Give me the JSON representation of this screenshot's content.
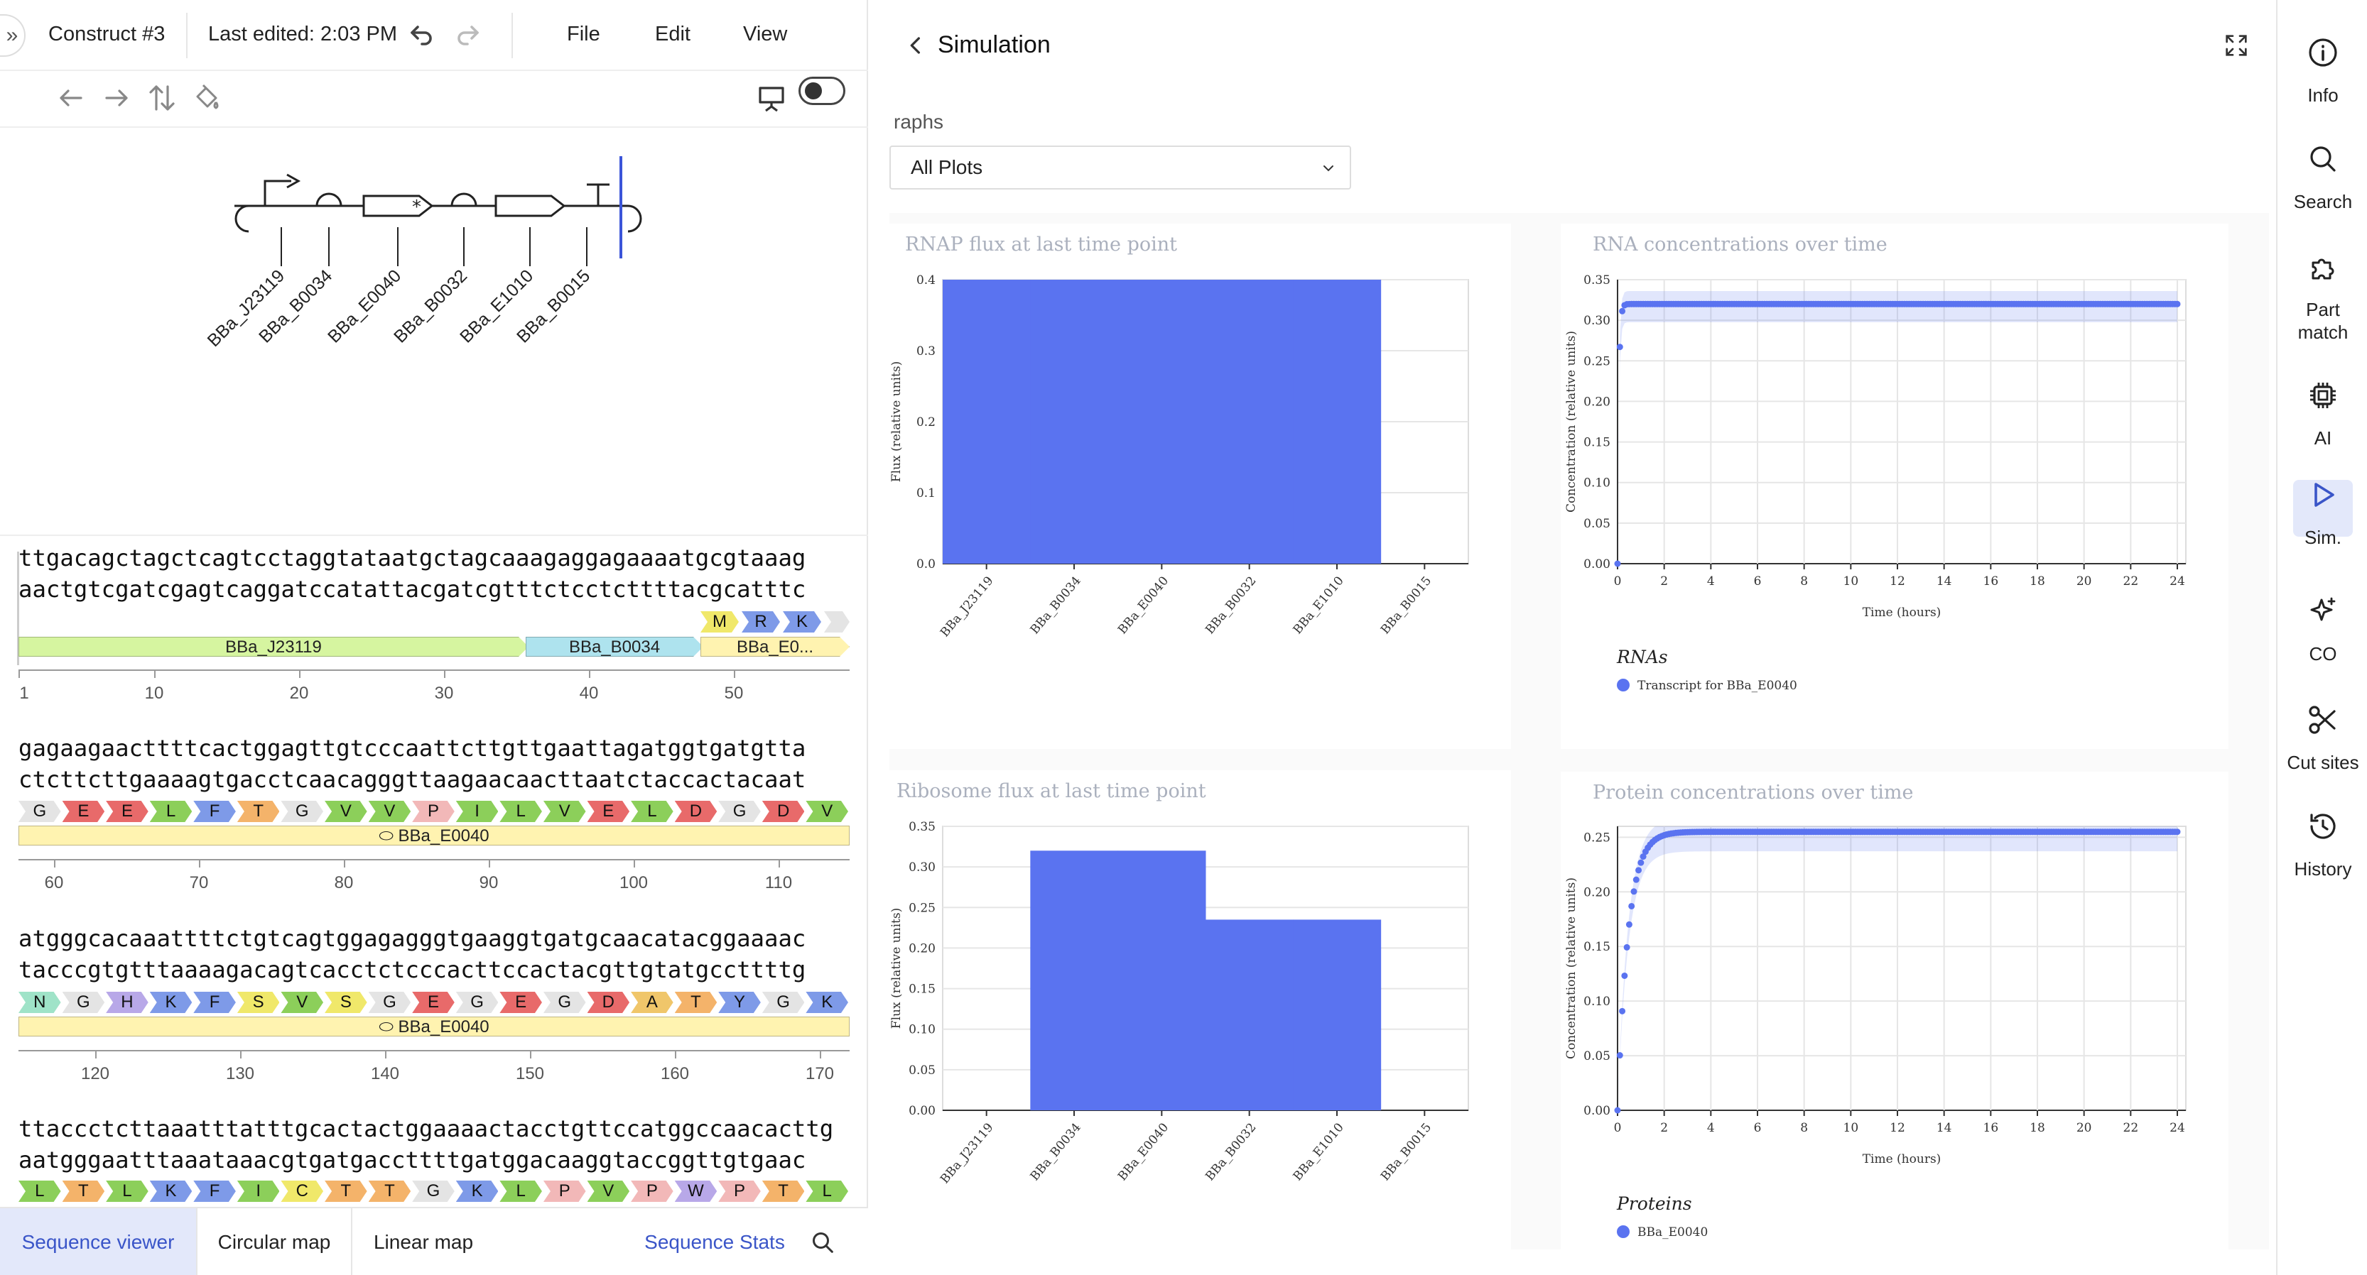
{
  "topbar": {
    "construct_name": "Construct #3",
    "last_edited": "Last edited: 2:03 PM",
    "menus": [
      "File",
      "Edit",
      "View"
    ]
  },
  "icons": {
    "expand": "double-chevron-right-icon",
    "undo": "undo-icon",
    "redo": "redo-icon",
    "back": "arrow-left-icon",
    "forward": "arrow-right-icon",
    "flip": "flip-strand-icon",
    "paint": "paint-bucket-icon",
    "presentation": "presentation-icon"
  },
  "parts": [
    "BBa_J23119",
    "BBa_B0034",
    "BBa_E0040",
    "BBa_B0032",
    "BBa_E1010",
    "BBa_B0015"
  ],
  "sequence": {
    "blocks": [
      {
        "top": "ttgacagctagctcagtcctaggtataatgctagcaaagaggagaaaatgcgtaaag",
        "bottom": "aactgtcgatcgagtcaggatccatattacgatcgtttctcctcttttacgcatttc",
        "translation": [
          "M",
          "R",
          "K"
        ],
        "features": [
          {
            "label": "BBa_J23119",
            "color": "#d6f5a0"
          },
          {
            "label": "BBa_B0034",
            "color": "#aee3ee"
          },
          {
            "label": "BBa_E0...",
            "color": "#fff3b0"
          }
        ],
        "ticks": [
          "1",
          "10",
          "20",
          "30",
          "40",
          "50"
        ]
      },
      {
        "top": "gagaagaacttttcactggagttgtcccaattcttgttgaattagatggtgatgtta",
        "bottom": "ctcttcttgaaaagtgacctcaacagggttaagaacaacttaatctaccactacaat",
        "translation": [
          "G",
          "E",
          "E",
          "L",
          "F",
          "T",
          "G",
          "V",
          "V",
          "P",
          "I",
          "L",
          "V",
          "E",
          "L",
          "D",
          "G",
          "D",
          "V"
        ],
        "features": [
          {
            "label": "BBa_E0040",
            "color": "#fff3b0"
          }
        ],
        "ticks": [
          "60",
          "70",
          "80",
          "90",
          "100",
          "110"
        ]
      },
      {
        "top": "atgggcacaaattttctgtcagtggagagggtgaaggtgatgcaacatacggaaaac",
        "bottom": "tacccgtgtttaaaagacagtcacctctcccacttccactacgttgtatgccttttg",
        "translation": [
          "N",
          "G",
          "H",
          "K",
          "F",
          "S",
          "V",
          "S",
          "G",
          "E",
          "G",
          "E",
          "G",
          "D",
          "A",
          "T",
          "Y",
          "G",
          "K"
        ],
        "features": [
          {
            "label": "BBa_E0040",
            "color": "#fff3b0"
          }
        ],
        "ticks": [
          "120",
          "130",
          "140",
          "150",
          "160",
          "170"
        ]
      },
      {
        "top": "ttaccctcttaaatttatttgcactactggaaaactacctgttccatggccaacacttg",
        "bottom": "aatgggaatttaaataaacgtgatgaccttttgatggacaaggtaccggttgtgaac",
        "translation": [
          "L",
          "T",
          "L",
          "K",
          "F",
          "I",
          "C",
          "T",
          "T",
          "G",
          "K",
          "L",
          "P",
          "V",
          "P",
          "W",
          "P",
          "T",
          "L"
        ],
        "features": [],
        "ticks": []
      }
    ]
  },
  "bottom_tabs": {
    "sequence_viewer": "Sequence viewer",
    "circular_map": "Circular map",
    "linear_map": "Linear map",
    "sequence_stats": "Sequence Stats"
  },
  "simulation": {
    "title": "Simulation",
    "graphs_label": "raphs",
    "select_value": "All Plots"
  },
  "chart_data": [
    {
      "type": "bar",
      "title": "RNAP flux at last time point",
      "ylabel": "Flux (relative units)",
      "categories": [
        "BBa_J23119",
        "BBa_B0034",
        "BBa_E0040",
        "BBa_B0032",
        "BBa_E1010",
        "BBa_B0015"
      ],
      "values": [
        0.4,
        0.4,
        0.4,
        0.4,
        0.4,
        0.0
      ],
      "ylim": [
        0,
        0.4
      ],
      "yticks": [
        "0.0",
        "0.1",
        "0.2",
        "0.3",
        "0.4"
      ],
      "color": "#5a73f0"
    },
    {
      "type": "scatter",
      "title": "RNA concentrations over time",
      "xlabel": "Time (hours)",
      "ylabel": "Concentration (relative units)",
      "xlim": [
        0,
        24
      ],
      "ylim": [
        0,
        0.35
      ],
      "xticks": [
        "0",
        "2",
        "4",
        "6",
        "8",
        "10",
        "12",
        "14",
        "16",
        "18",
        "20",
        "22",
        "24"
      ],
      "yticks": [
        "0.00",
        "0.05",
        "0.10",
        "0.15",
        "0.20",
        "0.25",
        "0.30",
        "0.35"
      ],
      "legend_title": "RNAs",
      "series": [
        {
          "name": "Transcript for BBa_E0040",
          "plateau": 0.32,
          "rate": 18,
          "color": "#5a73f0"
        }
      ]
    },
    {
      "type": "bar",
      "title": "Ribosome flux at last time point",
      "ylabel": "Flux (relative units)",
      "categories": [
        "BBa_J23119",
        "BBa_B0034",
        "BBa_E0040",
        "BBa_B0032",
        "BBa_E1010",
        "BBa_B0015"
      ],
      "values": [
        0.0,
        0.32,
        0.32,
        0.235,
        0.235,
        0.0
      ],
      "ylim": [
        0,
        0.35
      ],
      "yticks": [
        "0.00",
        "0.05",
        "0.10",
        "0.15",
        "0.20",
        "0.25",
        "0.30",
        "0.35"
      ],
      "color": "#5a73f0"
    },
    {
      "type": "scatter",
      "title": "Protein concentrations over time",
      "xlabel": "Time (hours)",
      "ylabel": "Concentration (relative units)",
      "xlim": [
        0,
        24
      ],
      "ylim": [
        0,
        0.26
      ],
      "xticks": [
        "0",
        "2",
        "4",
        "6",
        "8",
        "10",
        "12",
        "14",
        "16",
        "18",
        "20",
        "22",
        "24"
      ],
      "yticks": [
        "0.00",
        "0.05",
        "0.10",
        "0.15",
        "0.20",
        "0.25"
      ],
      "legend_title": "Proteins",
      "series": [
        {
          "name": "BBa_E0040",
          "plateau": 0.255,
          "rate": 2.2,
          "color": "#5a73f0"
        }
      ]
    }
  ],
  "rail": [
    {
      "label": "Info",
      "icon": "info-icon"
    },
    {
      "label": "Search",
      "icon": "search-icon"
    },
    {
      "label": "Part match",
      "icon": "puzzle-icon"
    },
    {
      "label": "AI",
      "icon": "chip-icon"
    },
    {
      "label": "Sim.",
      "icon": "play-icon",
      "active": true
    },
    {
      "label": "CO",
      "icon": "sparkle-icon"
    },
    {
      "label": "Cut sites",
      "icon": "scissors-icon"
    },
    {
      "label": "History",
      "icon": "history-icon"
    }
  ]
}
